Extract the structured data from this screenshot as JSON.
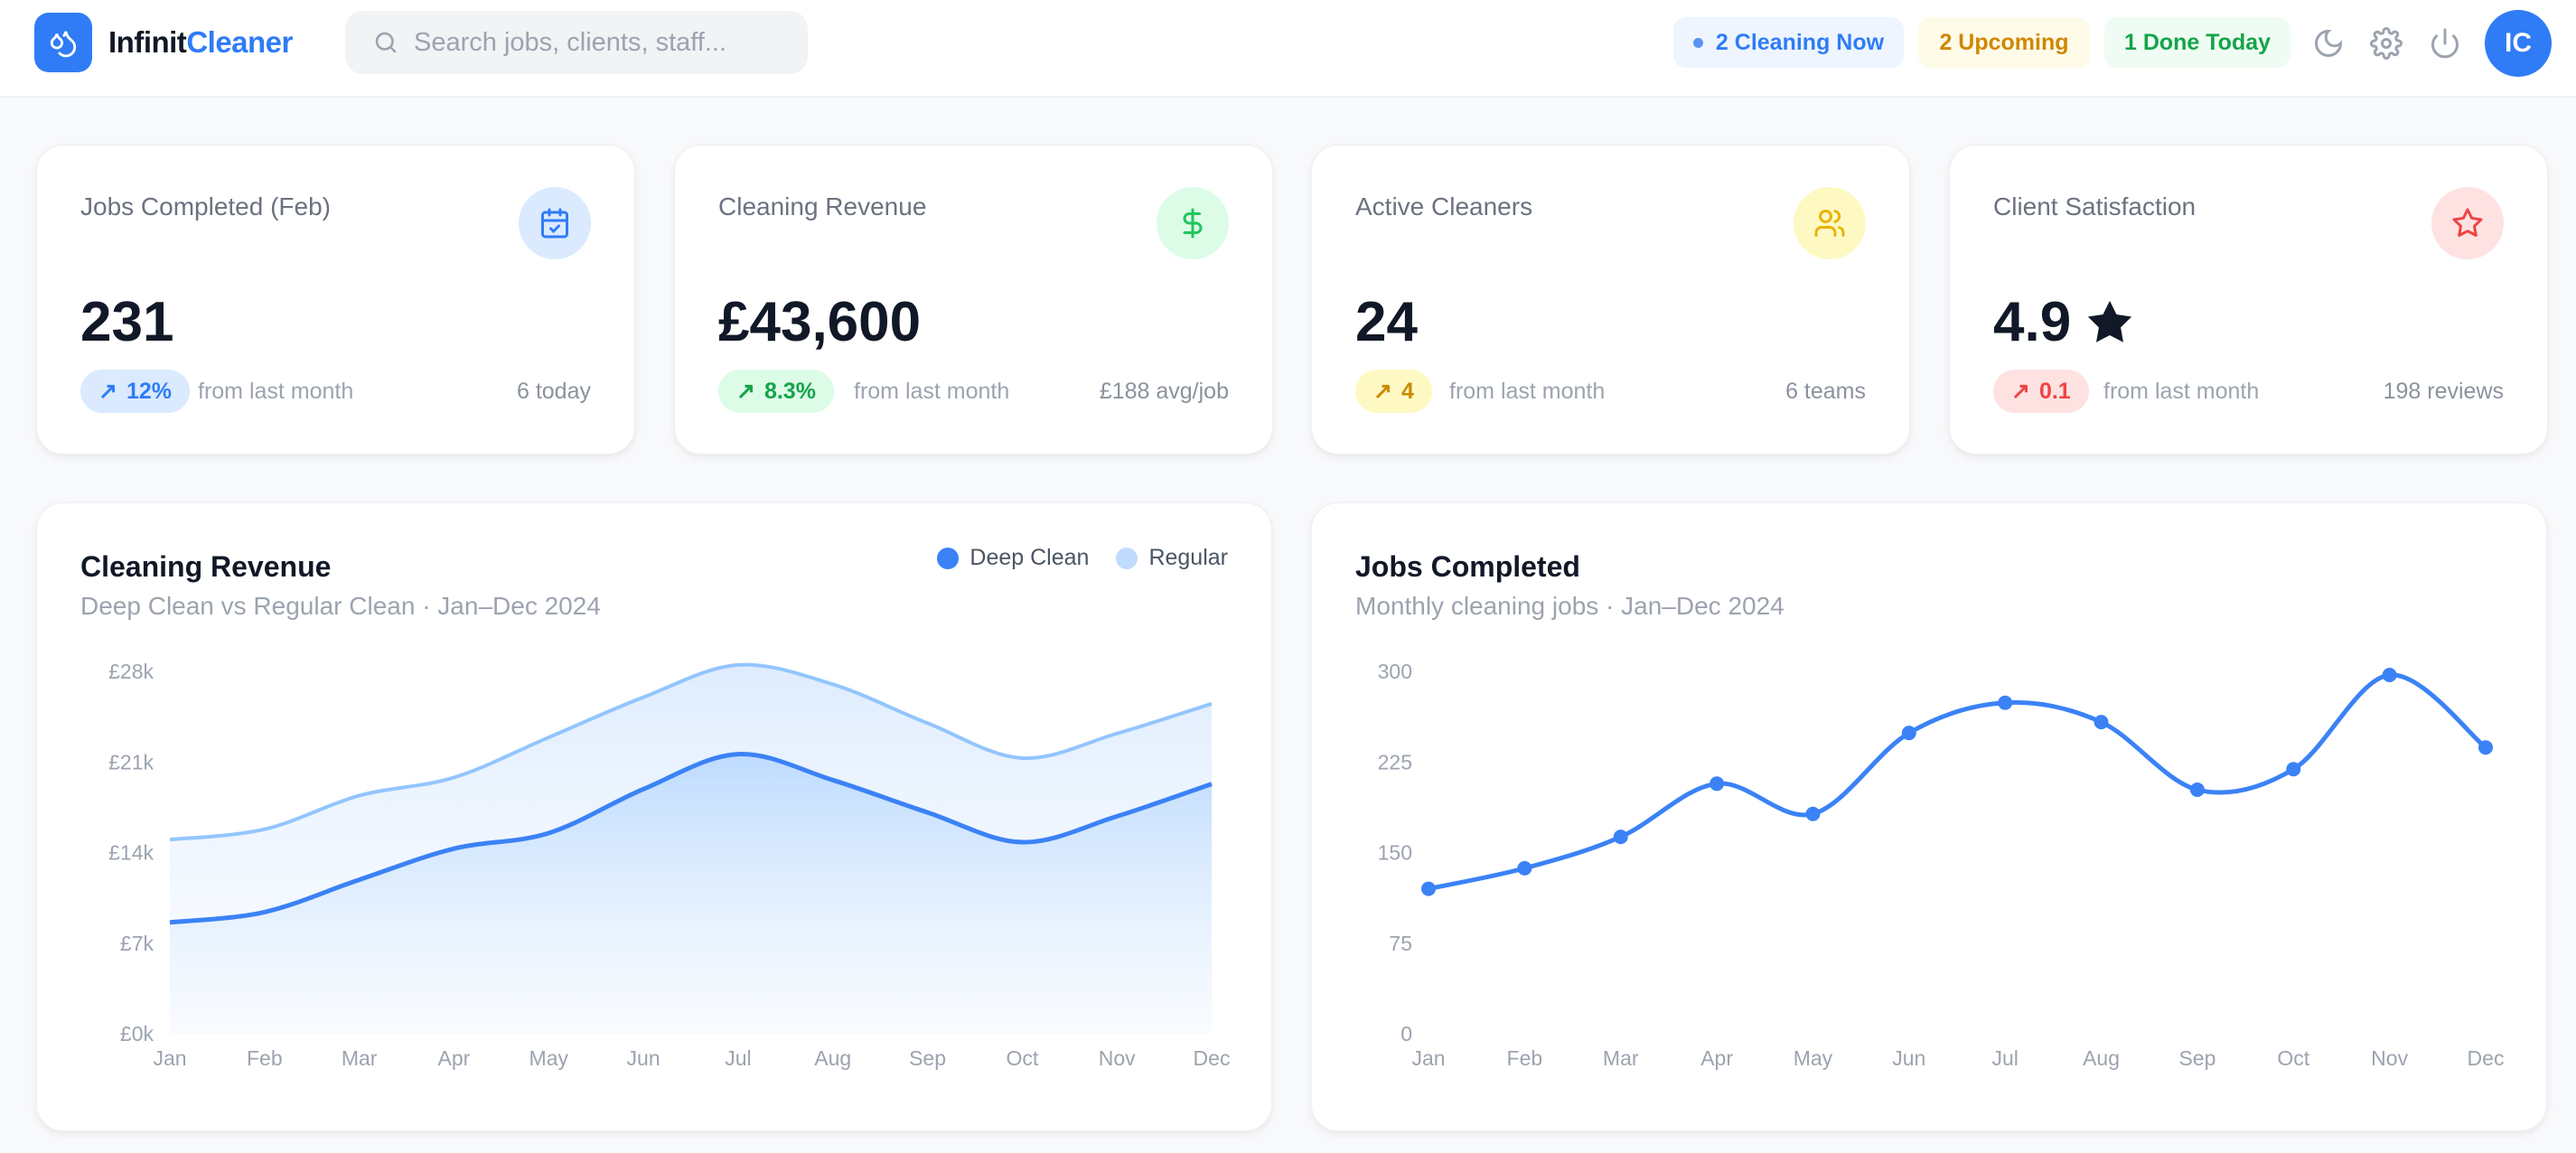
{
  "header": {
    "brand_part1": "Infinit",
    "brand_part2": "Cleaner",
    "search_placeholder": "Search jobs, clients, staff...",
    "badges": [
      {
        "label": "2 Cleaning Now",
        "color": "#2f7cf6",
        "bg": "#eef5ff"
      },
      {
        "label": "2 Upcoming",
        "color": "#d08700",
        "bg": "#fefbe8"
      },
      {
        "label": "1 Done Today",
        "color": "#16a34a",
        "bg": "#effcf3"
      }
    ],
    "icons": [
      "moon-icon",
      "gear-icon",
      "power-icon"
    ],
    "avatar_initials": "IC",
    "accent": "#2f7cf6"
  },
  "stats": [
    {
      "title": "Jobs Completed (Feb)",
      "value": "231",
      "change": "12%",
      "from": "from last month",
      "side": "6 today",
      "icon": "calendar-check-icon",
      "color": "#2f7cf6",
      "bg": "#dbeafe"
    },
    {
      "title": "Cleaning Revenue",
      "value": "£43,600",
      "change": "8.3%",
      "from": "from last month",
      "side": "£188 avg/job",
      "icon": "dollar-icon",
      "color": "#16a34a",
      "bg": "#dcfce7"
    },
    {
      "title": "Active Cleaners",
      "value": "24",
      "change": "4",
      "from": "from last month",
      "side": "6 teams",
      "icon": "users-icon",
      "color": "#ca8a04",
      "bg": "#fef9c3"
    },
    {
      "title": "Client Satisfaction",
      "value": "4.9",
      "change": "0.1",
      "from": "from last month",
      "side": "198 reviews",
      "icon": "star-icon",
      "color": "#ef4444",
      "bg": "#fee2e2"
    }
  ],
  "chart_data": [
    {
      "type": "area",
      "title": "Cleaning Revenue",
      "subtitle": "Deep Clean vs Regular Clean · Jan–Dec 2024",
      "categories": [
        "Jan",
        "Feb",
        "Mar",
        "Apr",
        "May",
        "Jun",
        "Jul",
        "Aug",
        "Sep",
        "Oct",
        "Nov",
        "Dec"
      ],
      "yticks": [
        "£0k",
        "£7k",
        "£14k",
        "£21k",
        "£28k"
      ],
      "ylim": [
        0,
        28000
      ],
      "grid": false,
      "legend": "top-right",
      "series": [
        {
          "name": "Deep Clean",
          "color": "#3b82f6",
          "values": [
            8600,
            9400,
            11900,
            14300,
            15500,
            18900,
            21600,
            19600,
            17100,
            14800,
            16800,
            19300
          ]
        },
        {
          "name": "Regular",
          "color": "#93c5fd",
          "values": [
            15000,
            15800,
            18400,
            19800,
            22900,
            26000,
            28500,
            27000,
            24000,
            21300,
            23200,
            25500
          ]
        }
      ]
    },
    {
      "type": "line",
      "title": "Jobs Completed",
      "subtitle": "Monthly cleaning jobs · Jan–Dec 2024",
      "categories": [
        "Jan",
        "Feb",
        "Mar",
        "Apr",
        "May",
        "Jun",
        "Jul",
        "Aug",
        "Sep",
        "Oct",
        "Nov",
        "Dec"
      ],
      "yticks": [
        "0",
        "75",
        "150",
        "225",
        "300"
      ],
      "ylim": [
        0,
        300
      ],
      "grid": false,
      "legend": "none",
      "series": [
        {
          "color": "#3b82f6",
          "values": [
            120,
            137,
            163,
            207,
            182,
            249,
            274,
            258,
            202,
            219,
            297,
            237
          ]
        }
      ]
    }
  ]
}
